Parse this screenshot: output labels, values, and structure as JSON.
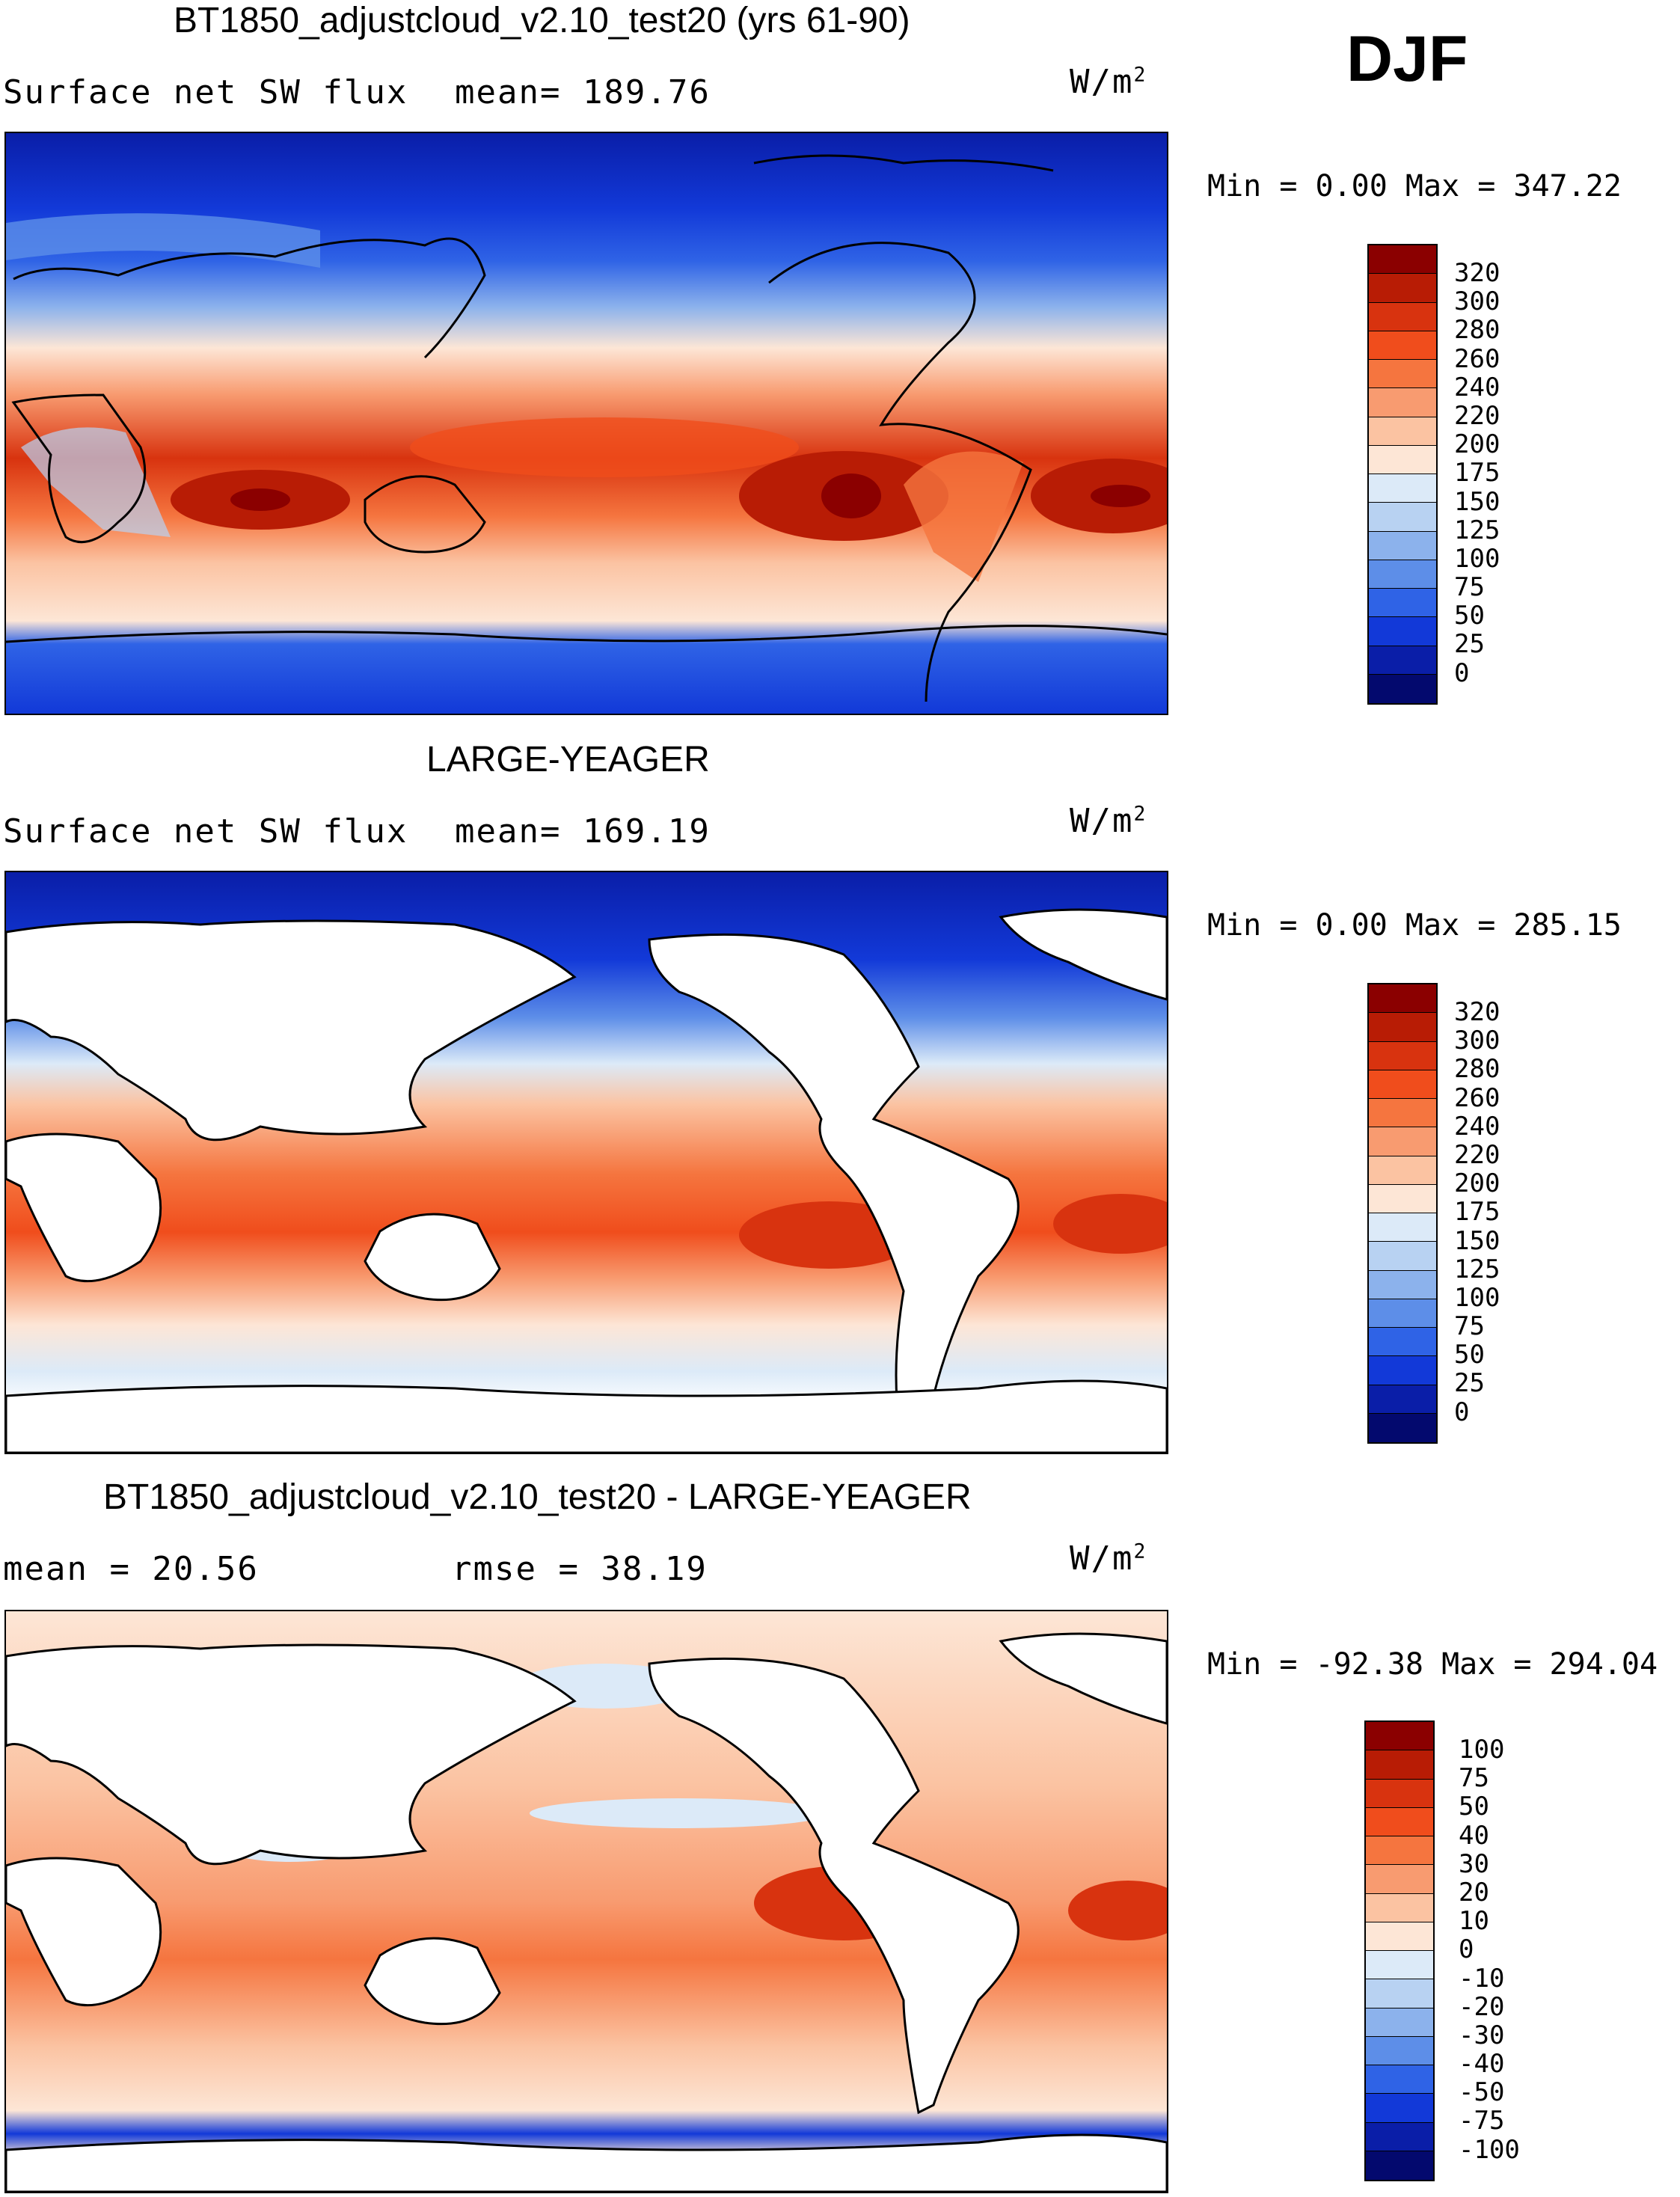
{
  "season": "DJF",
  "units_base": "W/m",
  "units_exp": "2",
  "panels": [
    {
      "title": "BT1850_adjustcloud_v2.10_test20 (yrs 61-90)",
      "left_label": "Surface net SW flux",
      "center_label": "mean= 189.76",
      "minmax": "Min =    0.00 Max = 347.22",
      "colorbar": {
        "labels": [
          "320",
          "300",
          "280",
          "260",
          "240",
          "220",
          "200",
          "175",
          "150",
          "125",
          "100",
          "75",
          "50",
          "25",
          "0"
        ],
        "colors": [
          "#8b0000",
          "#b81c05",
          "#d8330f",
          "#f04d1c",
          "#f5753f",
          "#f89b70",
          "#fbc3a2",
          "#fde6d6",
          "#dceaf8",
          "#b8d2f2",
          "#8cb2ec",
          "#5d8ee8",
          "#2f63e6",
          "#1239d8",
          "#0a1ea8",
          "#03096e"
        ]
      }
    },
    {
      "title": "LARGE-YEAGER",
      "left_label": "Surface net SW flux",
      "center_label": "mean= 169.19",
      "minmax": "Min =    0.00 Max = 285.15",
      "colorbar": {
        "labels": [
          "320",
          "300",
          "280",
          "260",
          "240",
          "220",
          "200",
          "175",
          "150",
          "125",
          "100",
          "75",
          "50",
          "25",
          "0"
        ],
        "colors": [
          "#8b0000",
          "#b81c05",
          "#d8330f",
          "#f04d1c",
          "#f5753f",
          "#f89b70",
          "#fbc3a2",
          "#fde6d6",
          "#dceaf8",
          "#b8d2f2",
          "#8cb2ec",
          "#5d8ee8",
          "#2f63e6",
          "#1239d8",
          "#0a1ea8",
          "#03096e"
        ]
      }
    },
    {
      "title": "BT1850_adjustcloud_v2.10_test20 - LARGE-YEAGER",
      "left_label": "mean =   20.56",
      "center_label": "rmse =   38.19",
      "minmax": "Min = -92.38 Max = 294.04",
      "colorbar": {
        "labels": [
          "100",
          "75",
          "50",
          "40",
          "30",
          "20",
          "10",
          "0",
          "-10",
          "-20",
          "-30",
          "-40",
          "-50",
          "-75",
          "-100"
        ],
        "colors": [
          "#8b0000",
          "#b81c05",
          "#d8330f",
          "#f04d1c",
          "#f5753f",
          "#f89b70",
          "#fbc3a2",
          "#fde6d6",
          "#dceaf8",
          "#b8d2f2",
          "#8cb2ec",
          "#5d8ee8",
          "#2f63e6",
          "#1239d8",
          "#0a1ea8",
          "#03096e"
        ]
      }
    }
  ]
}
